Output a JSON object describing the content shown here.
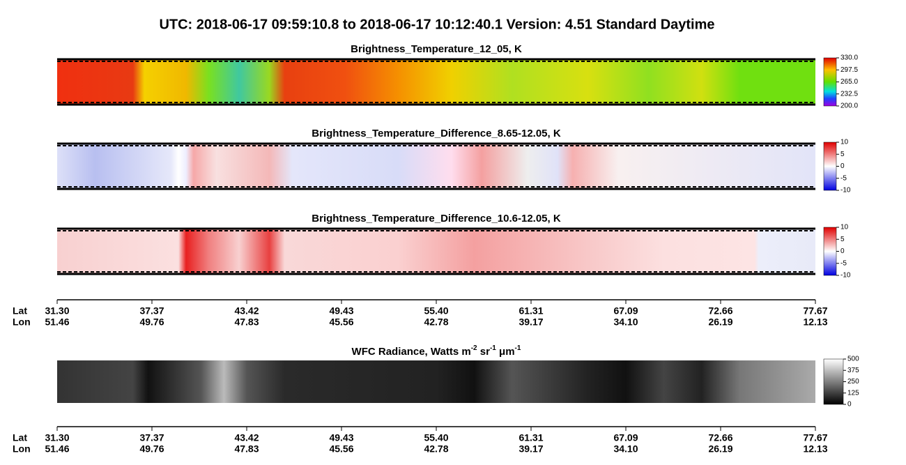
{
  "header": {
    "title": "UTC:  2018-06-17   09:59:10.8  to  2018-06-17   10:12:40.1    Version: 4.51  Standard Daytime"
  },
  "panels": [
    {
      "title": "Brightness_Temperature_12_05, K",
      "colorbar": [
        "330.0",
        "297.5",
        "265.0",
        "232.5",
        "200.0"
      ]
    },
    {
      "title": "Brightness_Temperature_Difference_8.65-12.05, K",
      "colorbar": [
        "10",
        "5",
        "0",
        "-5",
        "-10"
      ]
    },
    {
      "title": "Brightness_Temperature_Difference_10.6-12.05, K",
      "colorbar": [
        "10",
        "5",
        "0",
        "-5",
        "-10"
      ]
    },
    {
      "title_parts": [
        "WFC Radiance, Watts m",
        "-2",
        " sr",
        "-1",
        " μm",
        "-1"
      ],
      "colorbar": [
        "500",
        "375",
        "250",
        "125",
        "0"
      ]
    }
  ],
  "axis": {
    "lat_label": "Lat",
    "lon_label": "Lon",
    "lat": [
      "31.30",
      "37.37",
      "43.42",
      "49.43",
      "55.40",
      "61.31",
      "67.09",
      "72.66",
      "77.67"
    ],
    "lon": [
      "51.46",
      "49.76",
      "47.83",
      "45.56",
      "42.78",
      "39.17",
      "34.10",
      "26.19",
      "12.13"
    ]
  }
}
